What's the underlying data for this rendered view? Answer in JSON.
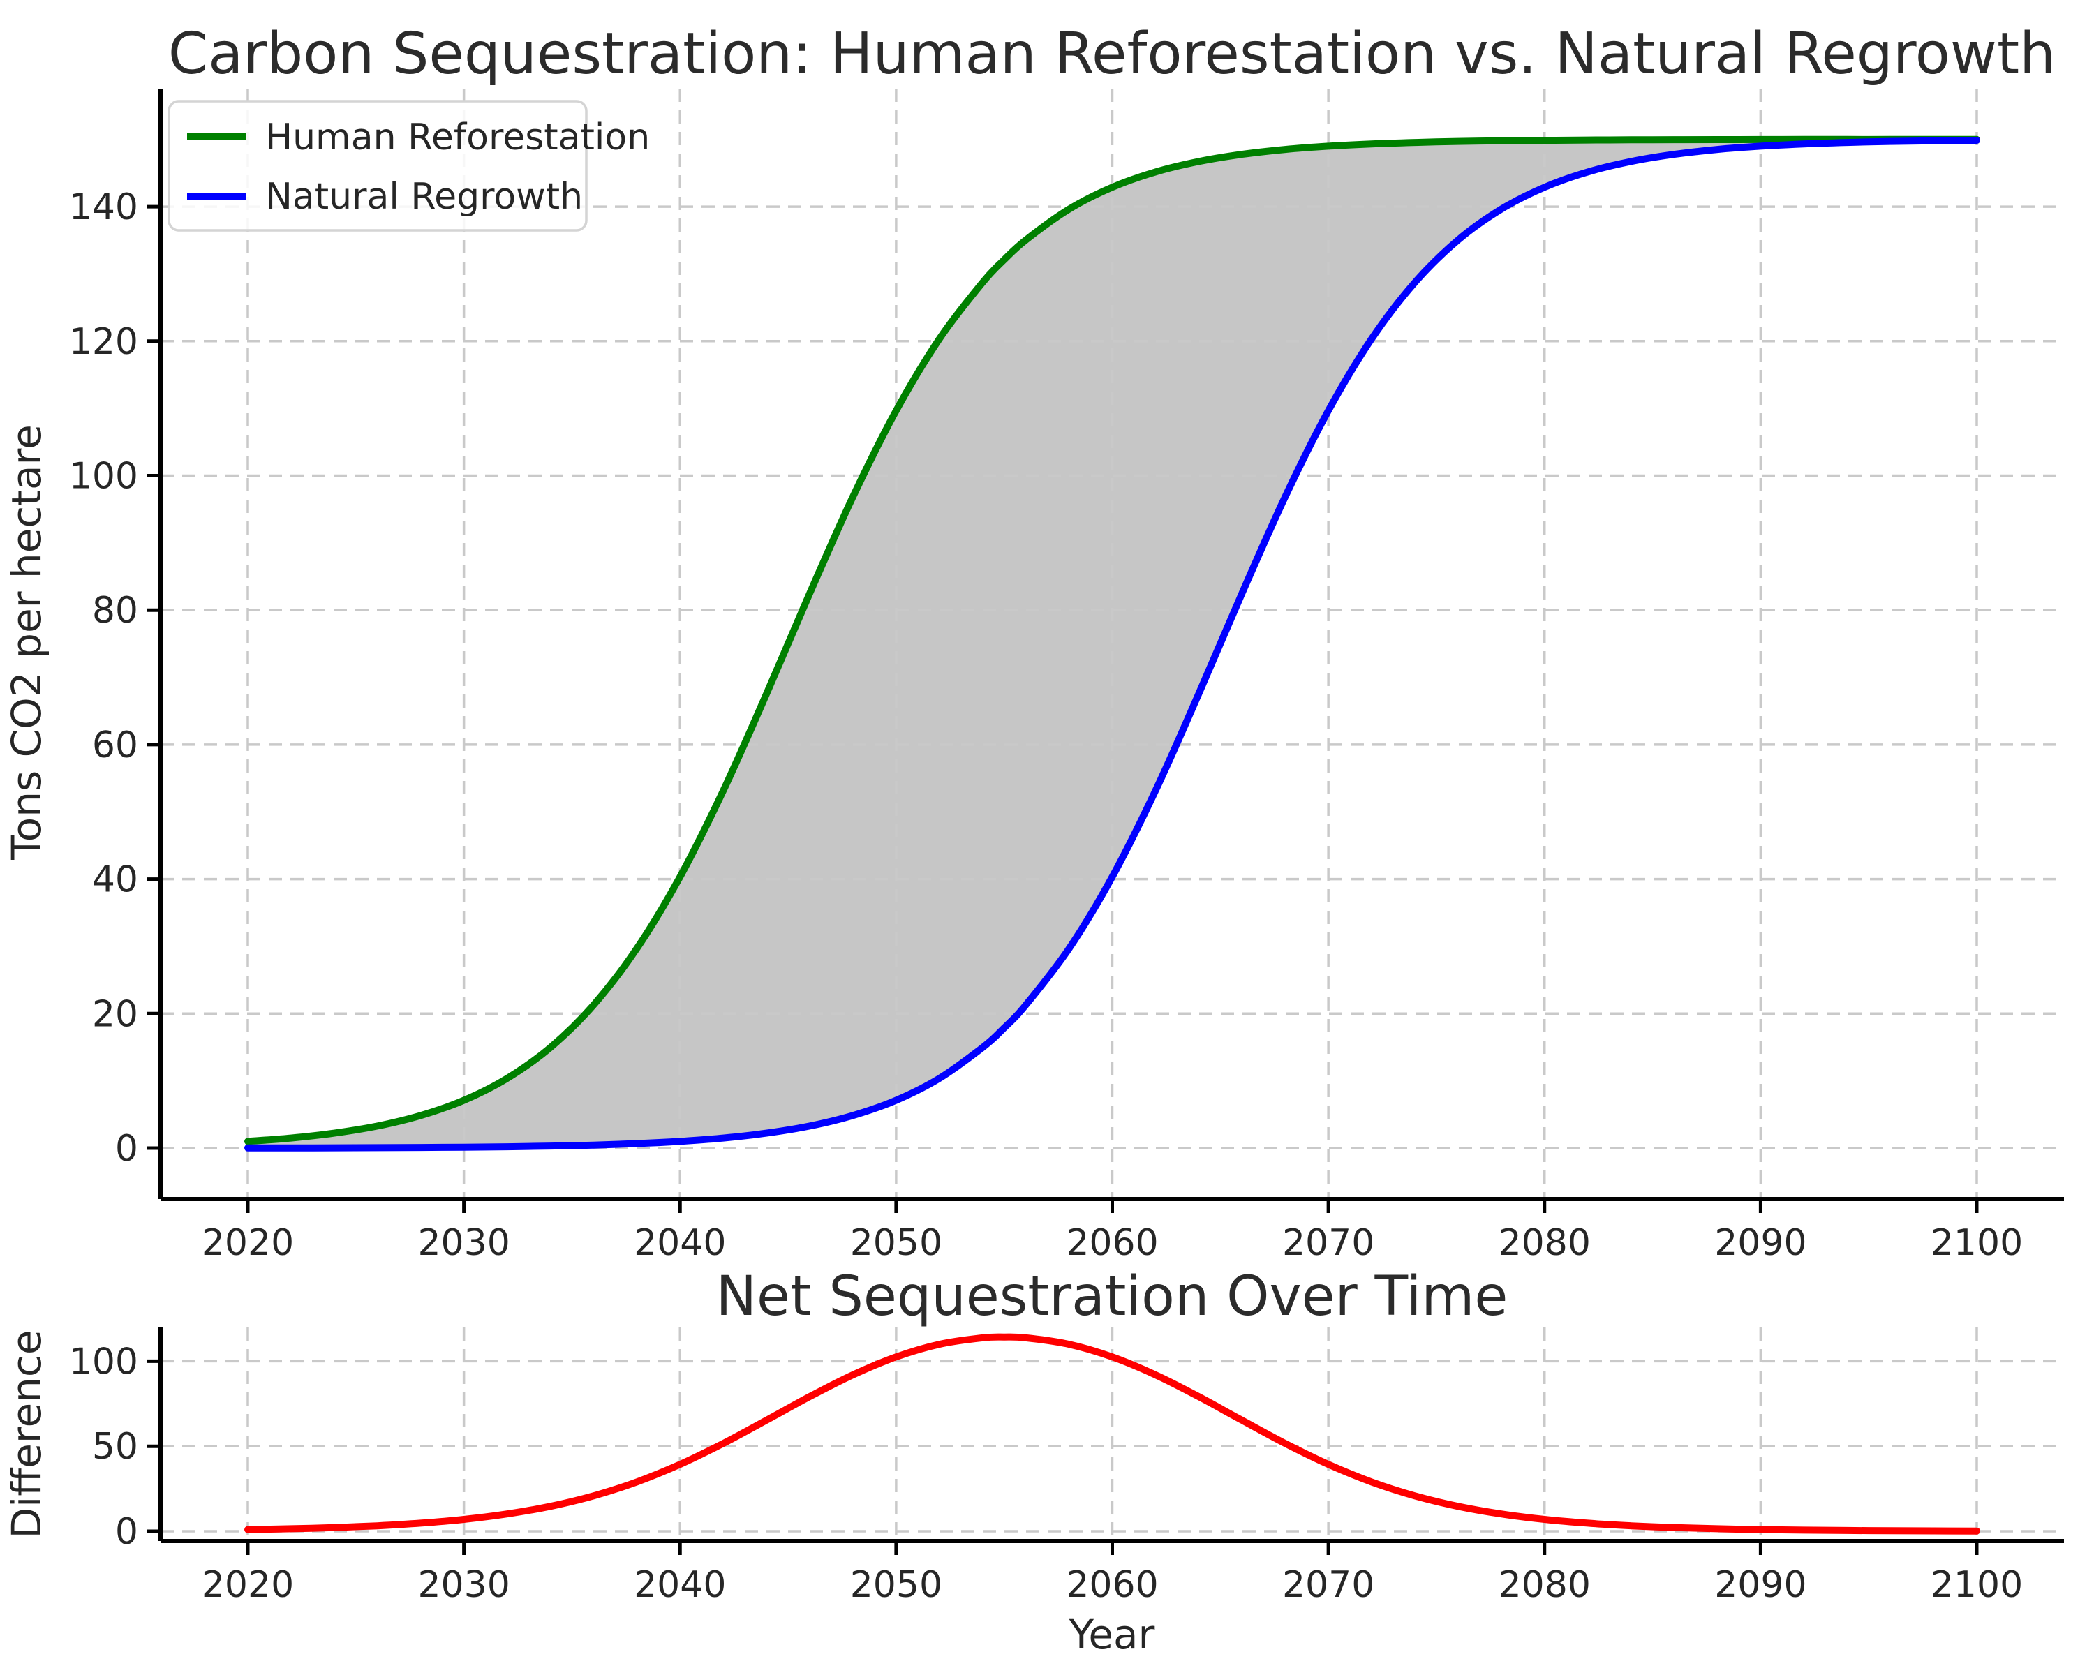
{
  "figure": {
    "background": "#ffffff",
    "text_color": "#262626",
    "grid_color": "#c9c9c9"
  },
  "chart_data": [
    {
      "type": "line",
      "title": "Carbon Sequestration: Human Reforestation vs. Natural Regrowth",
      "xlabel": "",
      "ylabel": "Tons CO2 per hectare",
      "x_ticks": [
        2020,
        2030,
        2040,
        2050,
        2060,
        2070,
        2080,
        2090,
        2100
      ],
      "y_ticks": [
        0,
        20,
        40,
        60,
        80,
        100,
        120,
        140
      ],
      "xlim": [
        2016,
        2104
      ],
      "ylim": [
        -7.5,
        157.5
      ],
      "grid": true,
      "legend_position": "upper left",
      "x": [
        2020,
        2022,
        2024,
        2026,
        2028,
        2030,
        2032,
        2034,
        2036,
        2038,
        2040,
        2042,
        2044,
        2046,
        2048,
        2050,
        2052,
        2054,
        2055,
        2056,
        2058,
        2060,
        2062,
        2064,
        2066,
        2068,
        2070,
        2072,
        2074,
        2076,
        2078,
        2080,
        2082,
        2084,
        2086,
        2088,
        2090,
        2092,
        2094,
        2096,
        2098,
        2100
      ],
      "series": [
        {
          "name": "Human Reforestation",
          "color": "#008000",
          "values": [
            1.0,
            1.49,
            2.22,
            3.28,
            4.85,
            7.11,
            10.37,
            14.96,
            21.28,
            29.67,
            40.34,
            53.15,
            67.53,
            82.48,
            96.85,
            109.66,
            120.33,
            128.72,
            132.12,
            135.04,
            139.63,
            142.89,
            145.16,
            146.72,
            147.78,
            148.51,
            149.0,
            149.33,
            149.55,
            149.7,
            149.8,
            149.86,
            149.91,
            149.94,
            149.96,
            149.97,
            149.98,
            149.99,
            149.99,
            149.99,
            150.0,
            150.0
          ]
        },
        {
          "name": "Natural Regrowth",
          "color": "#0000ff",
          "values": [
            0.02,
            0.03,
            0.04,
            0.06,
            0.09,
            0.14,
            0.2,
            0.3,
            0.45,
            0.67,
            1.0,
            1.49,
            2.22,
            3.28,
            4.85,
            7.11,
            10.37,
            14.96,
            17.88,
            21.28,
            29.67,
            40.34,
            53.15,
            67.53,
            82.48,
            96.85,
            109.66,
            120.33,
            128.72,
            135.04,
            139.63,
            142.89,
            145.16,
            146.72,
            147.78,
            148.51,
            149.0,
            149.33,
            149.55,
            149.7,
            149.8,
            149.86
          ]
        }
      ],
      "fill_between": {
        "color": "#808080",
        "opacity": 0.45
      }
    },
    {
      "type": "line",
      "title": "Net Sequestration Over Time",
      "xlabel": "Year",
      "ylabel": "Difference",
      "x_ticks": [
        2020,
        2030,
        2040,
        2050,
        2060,
        2070,
        2080,
        2090,
        2100
      ],
      "y_ticks": [
        0,
        50,
        100
      ],
      "xlim": [
        2016,
        2104
      ],
      "ylim": [
        -5.7,
        119.9
      ],
      "grid": true,
      "x": [
        2020,
        2022,
        2024,
        2026,
        2028,
        2030,
        2032,
        2034,
        2036,
        2038,
        2040,
        2042,
        2044,
        2046,
        2048,
        2050,
        2052,
        2054,
        2055,
        2056,
        2058,
        2060,
        2062,
        2064,
        2066,
        2068,
        2070,
        2072,
        2074,
        2076,
        2078,
        2080,
        2082,
        2084,
        2086,
        2088,
        2090,
        2092,
        2094,
        2096,
        2098,
        2100
      ],
      "series": [
        {
          "name": "Difference",
          "color": "#ff0000",
          "values": [
            0.98,
            1.46,
            2.18,
            3.22,
            4.76,
            6.97,
            10.17,
            14.66,
            20.83,
            29.0,
            39.34,
            51.66,
            65.31,
            79.2,
            92.0,
            102.55,
            109.96,
            113.76,
            114.24,
            113.76,
            109.96,
            102.55,
            92.01,
            79.19,
            65.3,
            51.66,
            39.34,
            29.0,
            20.83,
            14.66,
            10.17,
            6.97,
            4.75,
            3.22,
            2.18,
            1.46,
            0.98,
            0.66,
            0.44,
            0.29,
            0.2,
            0.14
          ]
        }
      ]
    }
  ],
  "legend": {
    "items": [
      "Human Reforestation",
      "Natural Regrowth"
    ]
  }
}
